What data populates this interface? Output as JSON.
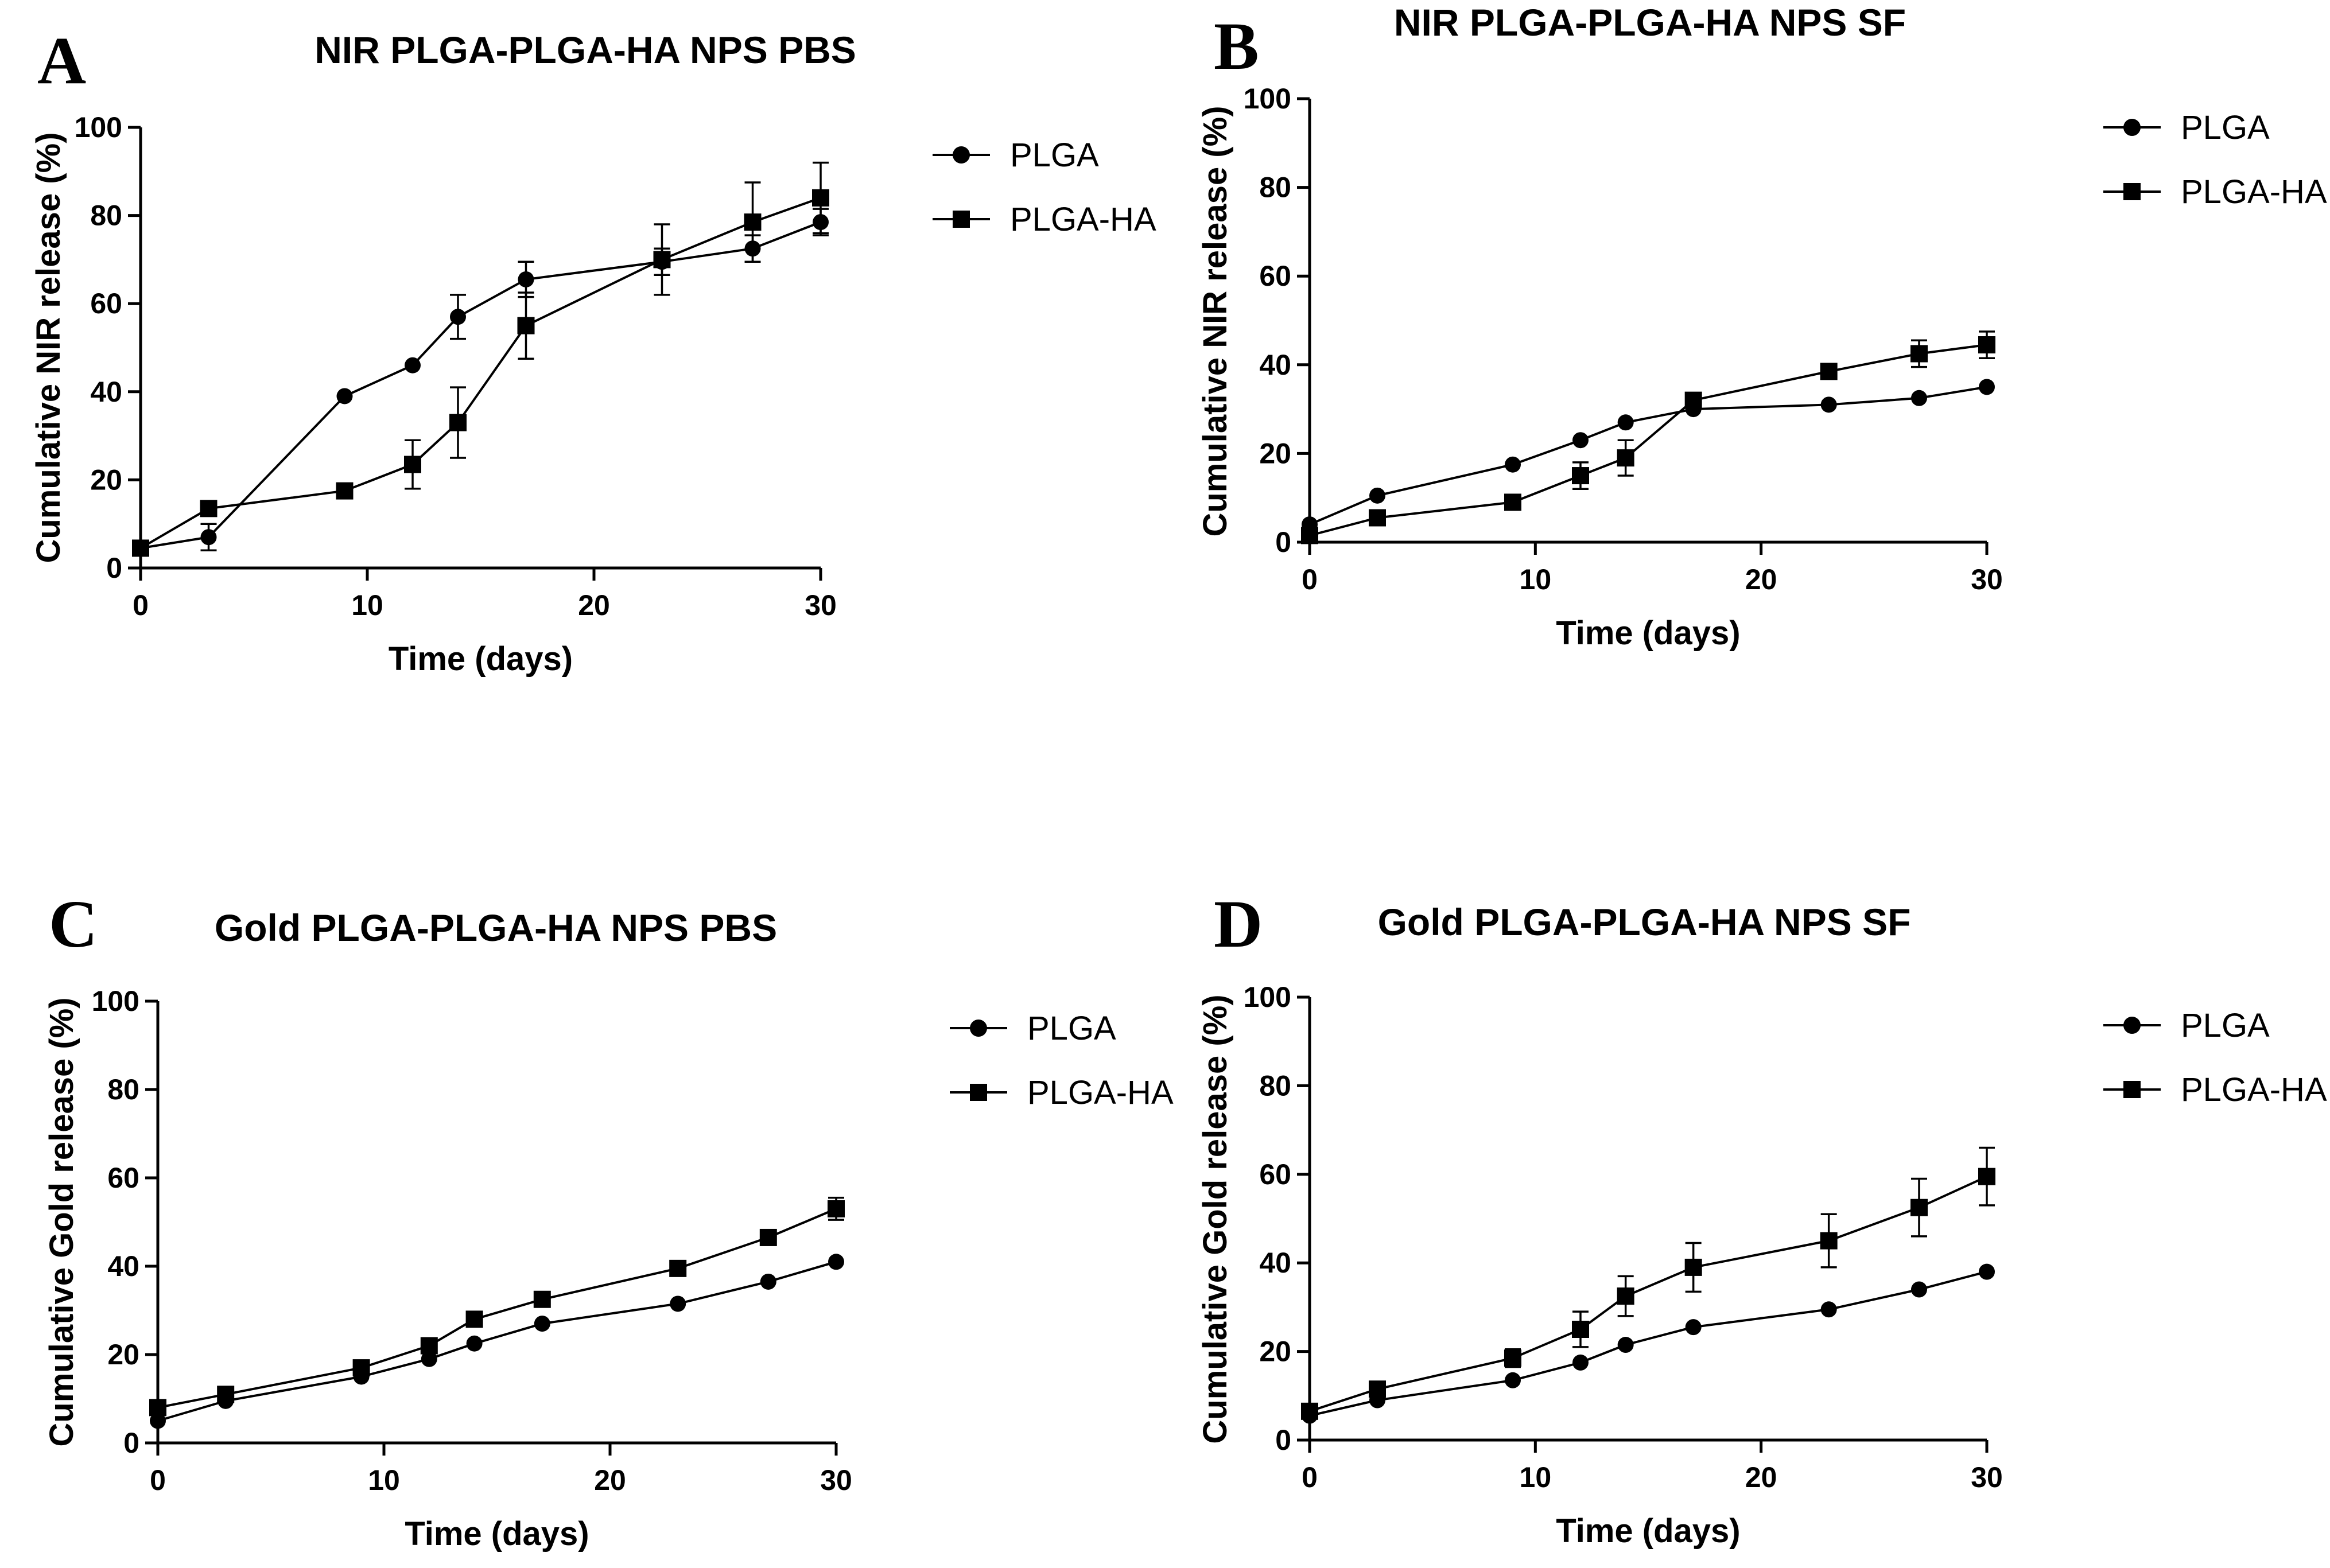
{
  "chart_data": [
    {
      "type": "line",
      "panel": "A",
      "title": "NIR PLGA-PLGA-HA NPS PBS",
      "xlabel": "Time (days)",
      "ylabel": "Cumulative NIR release (%)",
      "xlim": [
        0,
        30
      ],
      "ylim": [
        0,
        100
      ],
      "xticks": [
        0,
        10,
        20,
        30
      ],
      "yticks": [
        0,
        20,
        40,
        60,
        80,
        100
      ],
      "legend_position": "top-right",
      "series": [
        {
          "name": "PLGA",
          "marker": "circle",
          "x": [
            0,
            3,
            9,
            12,
            14,
            17,
            23,
            27,
            30
          ],
          "y": [
            4.5,
            7,
            39,
            46,
            57,
            65.5,
            69.5,
            72.5,
            78.5
          ],
          "err": [
            1,
            3,
            1,
            1,
            5,
            4,
            3,
            3,
            3
          ]
        },
        {
          "name": "PLGA-HA",
          "marker": "square",
          "x": [
            0,
            3,
            9,
            12,
            14,
            17,
            23,
            27,
            30
          ],
          "y": [
            4.5,
            13.5,
            17.5,
            23.5,
            33,
            55,
            70,
            78.5,
            84
          ],
          "err": [
            1,
            1,
            1,
            5.5,
            8,
            7.5,
            8,
            9,
            8
          ]
        }
      ]
    },
    {
      "type": "line",
      "panel": "B",
      "title": "NIR PLGA-PLGA-HA NPS SF",
      "xlabel": "Time (days)",
      "ylabel": "Cumulative NIR release (%)",
      "xlim": [
        0,
        30
      ],
      "ylim": [
        0,
        100
      ],
      "xticks": [
        0,
        10,
        20,
        30
      ],
      "yticks": [
        0,
        20,
        40,
        60,
        80,
        100
      ],
      "legend_position": "top-right",
      "series": [
        {
          "name": "PLGA",
          "marker": "circle",
          "x": [
            0,
            3,
            9,
            12,
            14,
            17,
            23,
            27,
            30
          ],
          "y": [
            4,
            10.5,
            17.5,
            23,
            27,
            30,
            31,
            32.5,
            35
          ],
          "err": [
            1,
            1,
            1,
            1,
            1,
            1,
            1,
            1,
            1
          ]
        },
        {
          "name": "PLGA-HA",
          "marker": "square",
          "x": [
            0,
            3,
            9,
            12,
            14,
            17,
            23,
            27,
            30
          ],
          "y": [
            1.5,
            5.5,
            9,
            15,
            19,
            32,
            38.5,
            42.5,
            44.5
          ],
          "err": [
            1,
            1,
            1,
            3,
            4,
            1,
            1,
            3,
            3
          ]
        }
      ]
    },
    {
      "type": "line",
      "panel": "C",
      "title": "Gold PLGA-PLGA-HA NPS PBS",
      "xlabel": "Time (days)",
      "ylabel": "Cumulative Gold release (%)",
      "xlim": [
        0,
        30
      ],
      "ylim": [
        0,
        100
      ],
      "xticks": [
        0,
        10,
        20,
        30
      ],
      "yticks": [
        0,
        20,
        40,
        60,
        80,
        100
      ],
      "legend_position": "top-right",
      "series": [
        {
          "name": "PLGA",
          "marker": "circle",
          "x": [
            0,
            3,
            9,
            12,
            14,
            17,
            23,
            27,
            30
          ],
          "y": [
            5,
            9.5,
            15,
            19,
            22.5,
            27,
            31.5,
            36.5,
            41
          ],
          "err": [
            1,
            1,
            1,
            1,
            1,
            1,
            1,
            1,
            1
          ]
        },
        {
          "name": "PLGA-HA",
          "marker": "square",
          "x": [
            0,
            3,
            9,
            12,
            14,
            17,
            23,
            27,
            30
          ],
          "y": [
            8,
            11,
            17,
            22,
            28,
            32.5,
            39.5,
            46.5,
            53
          ],
          "err": [
            1,
            1,
            1,
            1,
            1,
            1,
            1,
            1,
            2.5
          ]
        }
      ]
    },
    {
      "type": "line",
      "panel": "D",
      "title": "Gold PLGA-PLGA-HA NPS SF",
      "xlabel": "Time (days)",
      "ylabel": "Cumulative Gold release (%)",
      "xlim": [
        0,
        30
      ],
      "ylim": [
        0,
        100
      ],
      "xticks": [
        0,
        10,
        20,
        30
      ],
      "yticks": [
        0,
        20,
        40,
        60,
        80,
        100
      ],
      "legend_position": "top-right",
      "series": [
        {
          "name": "PLGA",
          "marker": "circle",
          "x": [
            0,
            3,
            9,
            12,
            14,
            17,
            23,
            27,
            30
          ],
          "y": [
            5.5,
            9,
            13.5,
            17.5,
            21.5,
            25.5,
            29.5,
            34,
            38
          ],
          "err": [
            1,
            1,
            1,
            1,
            1,
            1,
            1,
            1,
            1
          ]
        },
        {
          "name": "PLGA-HA",
          "marker": "square",
          "x": [
            0,
            3,
            9,
            12,
            14,
            17,
            23,
            27,
            30
          ],
          "y": [
            6.5,
            11.5,
            18.5,
            25,
            32.5,
            39,
            45,
            52.5,
            59.5
          ],
          "err": [
            1,
            1.5,
            2,
            4,
            4.5,
            5.5,
            6,
            6.5,
            6.5
          ]
        }
      ]
    }
  ]
}
